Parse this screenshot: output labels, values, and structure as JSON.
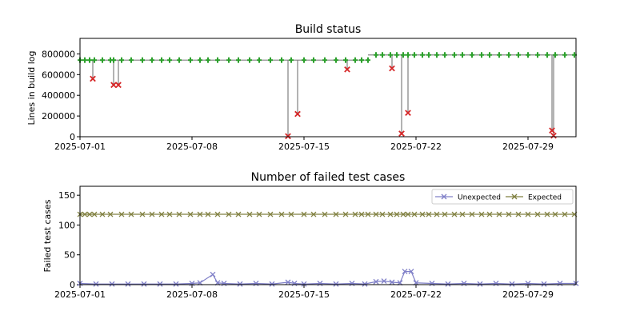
{
  "chart_data": [
    {
      "type": "scatter",
      "title": "Build status",
      "xlabel": "",
      "ylabel": "Lines in build log",
      "x_range": [
        "2025-07-01",
        "2025-08-01"
      ],
      "ylim": [
        0,
        950000
      ],
      "x_ticks": [
        "2025-07-01",
        "2025-07-08",
        "2025-07-15",
        "2025-07-22",
        "2025-07-29"
      ],
      "y_ticks": [
        0,
        200000,
        400000,
        600000,
        800000
      ],
      "y_tick_labels": [
        "0",
        "200000",
        "400000",
        "600000",
        "800000"
      ],
      "grid": false,
      "colors": {
        "pass": "#2ca02c",
        "fail": "#d62728",
        "line": "#808080"
      },
      "baseline_segments": [
        {
          "from": "2025-07-01",
          "to": "2025-07-19",
          "value": 740000
        },
        {
          "from": "2025-07-19",
          "to": "2025-08-01",
          "value": 790000
        }
      ],
      "passed_builds": {
        "marker": "plus",
        "dates": [
          "2025-07-01",
          "2025-07-01.3",
          "2025-07-01.6",
          "2025-07-01.9",
          "2025-07-02.4",
          "2025-07-02.9",
          "2025-07-03.1",
          "2025-07-03.6",
          "2025-07-04.2",
          "2025-07-04.9",
          "2025-07-05.5",
          "2025-07-06.1",
          "2025-07-06.6",
          "2025-07-07.2",
          "2025-07-07.9",
          "2025-07-08.5",
          "2025-07-09.0",
          "2025-07-09.6",
          "2025-07-10.3",
          "2025-07-10.9",
          "2025-07-11.6",
          "2025-07-12.2",
          "2025-07-12.9",
          "2025-07-13.6",
          "2025-07-14.2",
          "2025-07-15.0",
          "2025-07-15.6",
          "2025-07-16.3",
          "2025-07-17.0",
          "2025-07-17.6",
          "2025-07-18.2",
          "2025-07-18.6",
          "2025-07-19.0",
          "2025-07-19.5",
          "2025-07-19.9",
          "2025-07-20.4",
          "2025-07-20.8",
          "2025-07-21.2",
          "2025-07-21.5",
          "2025-07-21.9",
          "2025-07-22.4",
          "2025-07-22.8",
          "2025-07-23.3",
          "2025-07-23.8",
          "2025-07-24.4",
          "2025-07-24.9",
          "2025-07-25.5",
          "2025-07-26.1",
          "2025-07-26.6",
          "2025-07-27.2",
          "2025-07-27.8",
          "2025-07-28.4",
          "2025-07-29.0",
          "2025-07-29.6",
          "2025-07-30.2",
          "2025-07-30.7",
          "2025-07-31.3",
          "2025-07-31.9"
        ]
      },
      "failed_builds": {
        "marker": "x",
        "points": [
          {
            "date": "2025-07-01.8",
            "value": 560000
          },
          {
            "date": "2025-07-03.1",
            "value": 500000
          },
          {
            "date": "2025-07-03.4",
            "value": 500000
          },
          {
            "date": "2025-07-14.0",
            "value": 5000
          },
          {
            "date": "2025-07-14.6",
            "value": 220000
          },
          {
            "date": "2025-07-17.7",
            "value": 650000
          },
          {
            "date": "2025-07-20.5",
            "value": 660000
          },
          {
            "date": "2025-07-21.1",
            "value": 30000
          },
          {
            "date": "2025-07-21.5",
            "value": 230000
          },
          {
            "date": "2025-07-30.5",
            "value": 60000
          },
          {
            "date": "2025-07-30.6",
            "value": 10000
          }
        ]
      }
    },
    {
      "type": "line",
      "title": "Number of failed test cases",
      "xlabel": "",
      "ylabel": "Failed test cases",
      "x_range": [
        "2025-07-01",
        "2025-08-01"
      ],
      "ylim": [
        0,
        165
      ],
      "x_ticks": [
        "2025-07-01",
        "2025-07-08",
        "2025-07-15",
        "2025-07-22",
        "2025-07-29"
      ],
      "y_ticks": [
        0,
        50,
        100,
        150
      ],
      "y_tick_labels": [
        "0",
        "50",
        "100",
        "150"
      ],
      "grid": false,
      "legend_placement": "top-right",
      "series": [
        {
          "name": "Unexpected",
          "color": "#8080c8",
          "marker": "x",
          "points": [
            [
              "2025-07-01",
              2
            ],
            [
              "2025-07-02",
              1
            ],
            [
              "2025-07-03",
              1
            ],
            [
              "2025-07-04",
              1
            ],
            [
              "2025-07-05",
              1
            ],
            [
              "2025-07-06",
              1
            ],
            [
              "2025-07-07",
              1
            ],
            [
              "2025-07-08",
              2
            ],
            [
              "2025-07-08.5",
              3
            ],
            [
              "2025-07-09.3",
              17
            ],
            [
              "2025-07-09.6",
              3
            ],
            [
              "2025-07-10",
              2
            ],
            [
              "2025-07-11",
              1
            ],
            [
              "2025-07-12",
              2
            ],
            [
              "2025-07-13",
              1
            ],
            [
              "2025-07-14",
              4
            ],
            [
              "2025-07-14.4",
              2
            ],
            [
              "2025-07-15",
              1
            ],
            [
              "2025-07-16",
              2
            ],
            [
              "2025-07-17",
              1
            ],
            [
              "2025-07-18",
              2
            ],
            [
              "2025-07-18.8",
              1
            ],
            [
              "2025-07-19.5",
              5
            ],
            [
              "2025-07-20",
              6
            ],
            [
              "2025-07-20.5",
              4
            ],
            [
              "2025-07-21",
              3
            ],
            [
              "2025-07-21.3",
              22
            ],
            [
              "2025-07-21.7",
              22
            ],
            [
              "2025-07-22",
              3
            ],
            [
              "2025-07-23",
              2
            ],
            [
              "2025-07-24",
              1
            ],
            [
              "2025-07-25",
              2
            ],
            [
              "2025-07-26",
              1
            ],
            [
              "2025-07-27",
              2
            ],
            [
              "2025-07-28",
              1
            ],
            [
              "2025-07-29",
              2
            ],
            [
              "2025-07-30",
              1
            ],
            [
              "2025-07-31",
              2
            ],
            [
              "2025-08-01",
              2
            ]
          ]
        },
        {
          "name": "Expected",
          "color": "#808040",
          "marker": "x",
          "constant_value": 118,
          "dates": [
            "2025-07-01",
            "2025-07-01.3",
            "2025-07-01.6",
            "2025-07-01.9",
            "2025-07-02.4",
            "2025-07-02.9",
            "2025-07-03.6",
            "2025-07-04.2",
            "2025-07-04.9",
            "2025-07-05.5",
            "2025-07-06.1",
            "2025-07-06.6",
            "2025-07-07.2",
            "2025-07-07.9",
            "2025-07-08.5",
            "2025-07-09.0",
            "2025-07-09.6",
            "2025-07-10.3",
            "2025-07-10.9",
            "2025-07-11.6",
            "2025-07-12.2",
            "2025-07-12.9",
            "2025-07-13.6",
            "2025-07-14.2",
            "2025-07-15.0",
            "2025-07-15.6",
            "2025-07-16.3",
            "2025-07-17.0",
            "2025-07-17.6",
            "2025-07-18.2",
            "2025-07-18.6",
            "2025-07-19.0",
            "2025-07-19.5",
            "2025-07-19.9",
            "2025-07-20.4",
            "2025-07-20.8",
            "2025-07-21.2",
            "2025-07-21.5",
            "2025-07-21.9",
            "2025-07-22.4",
            "2025-07-22.8",
            "2025-07-23.3",
            "2025-07-23.8",
            "2025-07-24.4",
            "2025-07-24.9",
            "2025-07-25.5",
            "2025-07-26.1",
            "2025-07-26.6",
            "2025-07-27.2",
            "2025-07-27.8",
            "2025-07-28.4",
            "2025-07-29.0",
            "2025-07-29.6",
            "2025-07-30.2",
            "2025-07-30.7",
            "2025-07-31.3",
            "2025-07-31.9"
          ]
        }
      ]
    }
  ]
}
